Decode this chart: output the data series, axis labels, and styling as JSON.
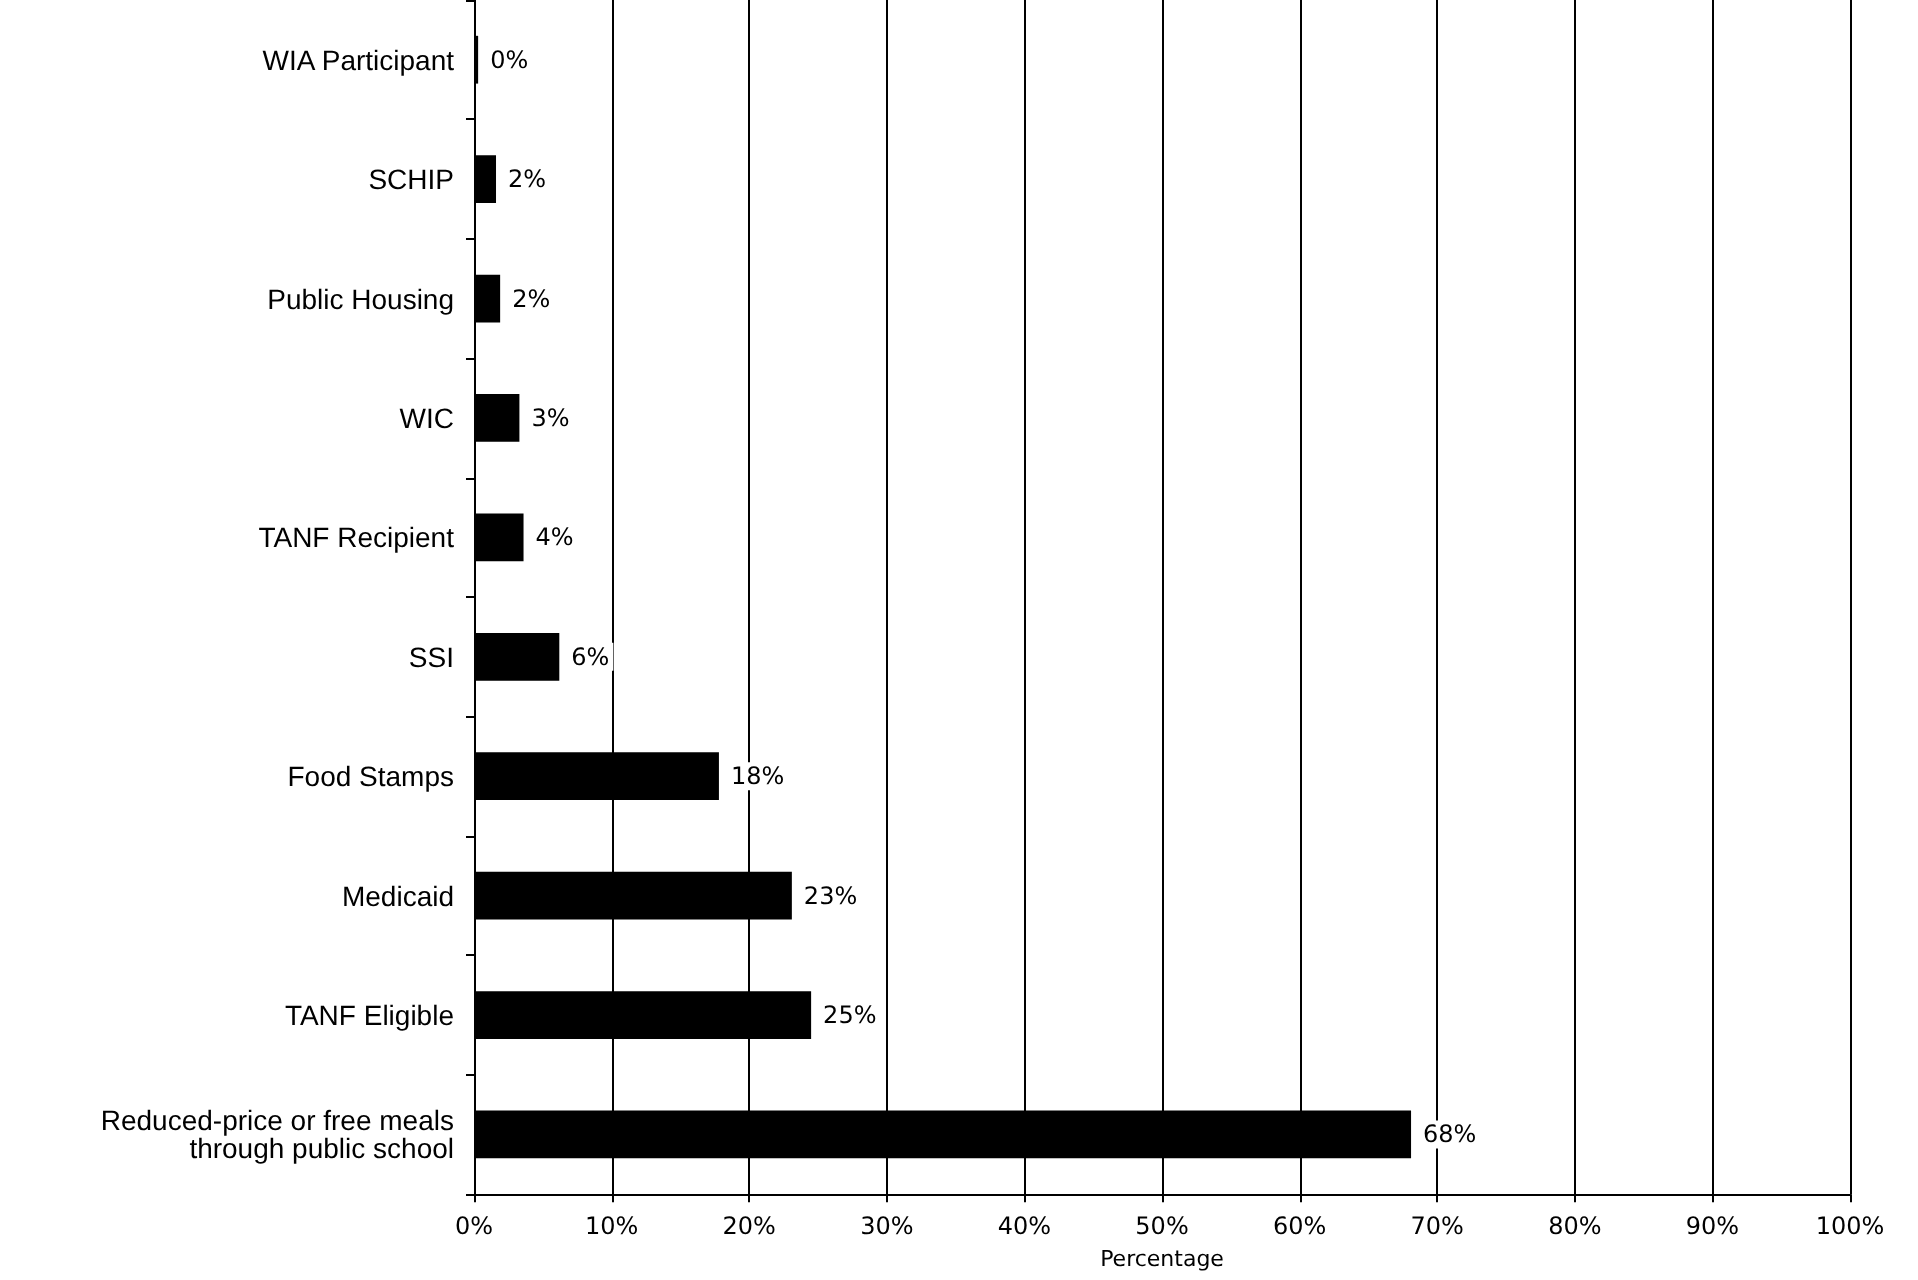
{
  "chart_data": {
    "type": "bar",
    "orientation": "horizontal",
    "categories": [
      "WIA Participant",
      "SCHIP",
      "Public Housing",
      "WIC",
      "TANF Recipient",
      "SSI",
      "Food Stamps",
      "Medicaid",
      "TANF Eligible",
      "Reduced-price or free meals\nthrough public school"
    ],
    "values": [
      0.3,
      1.6,
      1.9,
      3.3,
      3.6,
      6.2,
      17.8,
      23.1,
      24.5,
      68.1
    ],
    "value_labels": [
      "0%",
      "2%",
      "2%",
      "3%",
      "4%",
      "6%",
      "18%",
      "23%",
      "25%",
      "68%"
    ],
    "color": "#000000",
    "xlabel": "Percentage",
    "xlim": [
      0,
      100
    ],
    "xticks": [
      {
        "value": 0,
        "label": "0%"
      },
      {
        "value": 10,
        "label": "10%"
      },
      {
        "value": 20,
        "label": "20%"
      },
      {
        "value": 30,
        "label": "30%"
      },
      {
        "value": 40,
        "label": "40%"
      },
      {
        "value": 50,
        "label": "50%"
      },
      {
        "value": 60,
        "label": "60%"
      },
      {
        "value": 70,
        "label": "70%"
      },
      {
        "value": 80,
        "label": "80%"
      },
      {
        "value": 90,
        "label": "90%"
      },
      {
        "value": 100,
        "label": "100%"
      }
    ],
    "grid": "x"
  }
}
